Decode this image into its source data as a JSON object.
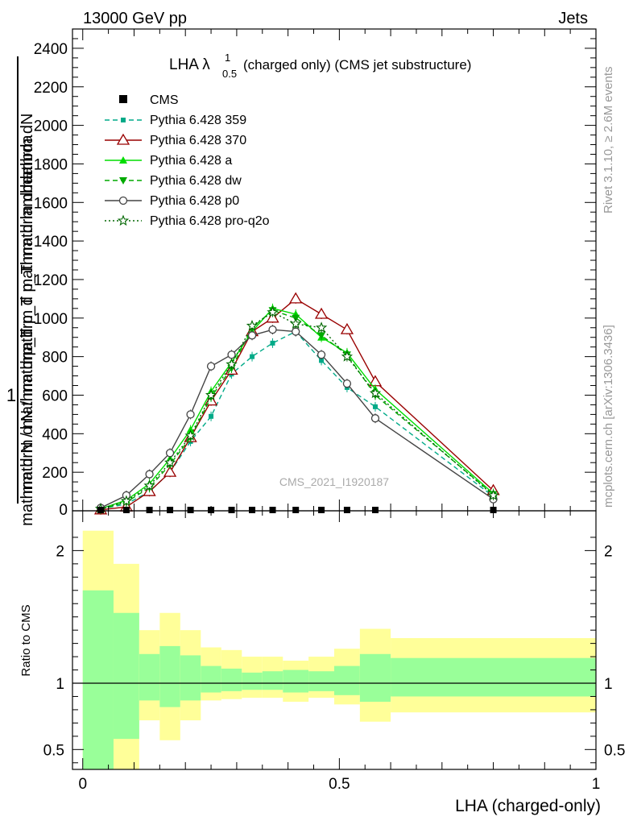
{
  "header": {
    "left": "13000 GeV pp",
    "right": "Jets"
  },
  "side_labels": {
    "rivet": "Rivet 3.1.10, ≥ 2.6M events",
    "mcplots": "mcplots.cern.ch [arXiv:1306.3436]"
  },
  "chart_data": [
    {
      "type": "line",
      "title_main": "LHA λ",
      "title_sup": "1",
      "title_sub": "0.5",
      "title_rest": "(charged only) (CMS jet substructure)",
      "ylabel_top": "1",
      "ylabel_top_denom": "mathrm dN",
      "ylabel_parts": [
        "mathrm d N / mathrm d p_T",
        "mathrm d p_T mathrm d lambda",
        "mathrm d N / mathrm d p_T mathrm d lambda"
      ],
      "ylim": [
        0,
        2500
      ],
      "yticks": [
        200,
        400,
        600,
        800,
        1000,
        1200,
        1400,
        1600,
        1800,
        2000,
        2200,
        2400
      ],
      "ytick_labels": [
        "200",
        "400",
        "600",
        "800",
        "1000",
        "1200",
        "1400",
        "1600",
        "1800",
        "2000",
        "2200",
        "2400"
      ],
      "xlim": [
        -0.02,
        1.0
      ],
      "watermark": "CMS_2021_I1920187",
      "legend_position": "top-left",
      "cms": {
        "name": "CMS",
        "x": [
          0.035,
          0.085,
          0.13,
          0.17,
          0.21,
          0.25,
          0.29,
          0.33,
          0.37,
          0.415,
          0.465,
          0.515,
          0.57,
          0.8
        ],
        "y": [
          0,
          0,
          0,
          0,
          0,
          0,
          0,
          0,
          0,
          0,
          0,
          0,
          0,
          0
        ]
      },
      "series": [
        {
          "name": "Pythia 6.428 359",
          "color": "#00aa88",
          "dash": "6,4",
          "marker": "square",
          "x": [
            0.035,
            0.085,
            0.13,
            0.17,
            0.21,
            0.25,
            0.29,
            0.33,
            0.37,
            0.415,
            0.465,
            0.515,
            0.57,
            0.8
          ],
          "y": [
            10,
            35,
            100,
            200,
            360,
            490,
            710,
            800,
            870,
            930,
            780,
            640,
            540,
            75
          ]
        },
        {
          "name": "Pythia 6.428 370",
          "color": "#990000",
          "dash": "",
          "marker": "triangle-open",
          "x": [
            0.035,
            0.085,
            0.13,
            0.17,
            0.21,
            0.25,
            0.29,
            0.33,
            0.37,
            0.415,
            0.465,
            0.515,
            0.57,
            0.8
          ],
          "y": [
            5,
            20,
            100,
            200,
            380,
            570,
            730,
            930,
            1000,
            1100,
            1020,
            940,
            670,
            105
          ]
        },
        {
          "name": "Pythia 6.428 a",
          "color": "#00dd00",
          "dash": "",
          "marker": "triangle",
          "x": [
            0.035,
            0.085,
            0.13,
            0.17,
            0.21,
            0.25,
            0.29,
            0.33,
            0.37,
            0.415,
            0.465,
            0.515,
            0.57,
            0.8
          ],
          "y": [
            10,
            55,
            140,
            270,
            420,
            620,
            770,
            930,
            1050,
            1020,
            900,
            820,
            630,
            90
          ]
        },
        {
          "name": "Pythia 6.428 dw",
          "color": "#00aa00",
          "dash": "6,4",
          "marker": "triangle-down",
          "x": [
            0.035,
            0.085,
            0.13,
            0.17,
            0.21,
            0.25,
            0.29,
            0.33,
            0.37,
            0.415,
            0.465,
            0.515,
            0.57,
            0.8
          ],
          "y": [
            8,
            45,
            120,
            240,
            380,
            590,
            740,
            950,
            1040,
            1000,
            910,
            810,
            600,
            85
          ]
        },
        {
          "name": "Pythia 6.428 p0",
          "color": "#444444",
          "dash": "",
          "marker": "circle-open",
          "x": [
            0.035,
            0.085,
            0.13,
            0.17,
            0.21,
            0.25,
            0.29,
            0.33,
            0.37,
            0.415,
            0.465,
            0.515,
            0.57,
            0.8
          ],
          "y": [
            15,
            80,
            190,
            300,
            500,
            750,
            810,
            910,
            940,
            930,
            810,
            660,
            480,
            60
          ]
        },
        {
          "name": "Pythia 6.428 pro-q2o",
          "color": "#006600",
          "dash": "2,3",
          "marker": "star",
          "x": [
            0.035,
            0.085,
            0.13,
            0.17,
            0.21,
            0.25,
            0.29,
            0.33,
            0.37,
            0.415,
            0.465,
            0.515,
            0.57,
            0.8
          ],
          "y": [
            10,
            50,
            130,
            250,
            390,
            600,
            760,
            960,
            1030,
            970,
            950,
            800,
            610,
            80
          ]
        }
      ]
    },
    {
      "type": "area",
      "ylabel": "Ratio to CMS",
      "xlabel": "LHA (charged-only)",
      "ylim": [
        0.35,
        2.3
      ],
      "yticks": [
        0.5,
        1,
        2
      ],
      "ytick_labels": [
        "0.5",
        "1",
        "2"
      ],
      "xticks": [
        0,
        0.5,
        1
      ],
      "xtick_labels": [
        "0",
        "0.5",
        "1"
      ],
      "xlim": [
        -0.02,
        1.0
      ],
      "bins": [
        {
          "lo": 0.0,
          "hi": 0.06,
          "yellow_lo": 0.35,
          "yellow_hi": 2.15,
          "green_lo": 0.35,
          "green_hi": 1.7
        },
        {
          "lo": 0.06,
          "hi": 0.11,
          "yellow_lo": 0.35,
          "yellow_hi": 1.9,
          "green_lo": 0.58,
          "green_hi": 1.53
        },
        {
          "lo": 0.11,
          "hi": 0.15,
          "yellow_lo": 0.72,
          "yellow_hi": 1.4,
          "green_lo": 0.87,
          "green_hi": 1.22
        },
        {
          "lo": 0.15,
          "hi": 0.19,
          "yellow_lo": 0.57,
          "yellow_hi": 1.53,
          "green_lo": 0.82,
          "green_hi": 1.28
        },
        {
          "lo": 0.19,
          "hi": 0.23,
          "yellow_lo": 0.72,
          "yellow_hi": 1.4,
          "green_lo": 0.87,
          "green_hi": 1.21
        },
        {
          "lo": 0.23,
          "hi": 0.27,
          "yellow_lo": 0.87,
          "yellow_hi": 1.27,
          "green_lo": 0.93,
          "green_hi": 1.13
        },
        {
          "lo": 0.27,
          "hi": 0.31,
          "yellow_lo": 0.88,
          "yellow_hi": 1.25,
          "green_lo": 0.94,
          "green_hi": 1.11
        },
        {
          "lo": 0.31,
          "hi": 0.35,
          "yellow_lo": 0.89,
          "yellow_hi": 1.2,
          "green_lo": 0.95,
          "green_hi": 1.08
        },
        {
          "lo": 0.35,
          "hi": 0.39,
          "yellow_lo": 0.89,
          "yellow_hi": 1.2,
          "green_lo": 0.95,
          "green_hi": 1.09
        },
        {
          "lo": 0.39,
          "hi": 0.44,
          "yellow_lo": 0.86,
          "yellow_hi": 1.17,
          "green_lo": 0.93,
          "green_hi": 1.1
        },
        {
          "lo": 0.44,
          "hi": 0.49,
          "yellow_lo": 0.89,
          "yellow_hi": 1.2,
          "green_lo": 0.94,
          "green_hi": 1.09
        },
        {
          "lo": 0.49,
          "hi": 0.54,
          "yellow_lo": 0.84,
          "yellow_hi": 1.26,
          "green_lo": 0.91,
          "green_hi": 1.13
        },
        {
          "lo": 0.54,
          "hi": 0.6,
          "yellow_lo": 0.71,
          "yellow_hi": 1.41,
          "green_lo": 0.86,
          "green_hi": 1.22
        },
        {
          "lo": 0.6,
          "hi": 1.0,
          "yellow_lo": 0.78,
          "yellow_hi": 1.34,
          "green_lo": 0.9,
          "green_hi": 1.19
        }
      ]
    }
  ]
}
